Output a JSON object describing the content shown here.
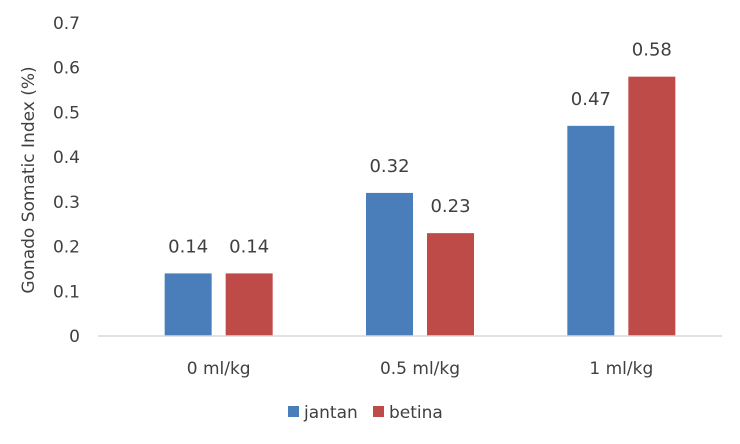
{
  "chart_data": {
    "type": "bar",
    "title": "",
    "xlabel": "",
    "ylabel": "Gonado Somatic Index (%)",
    "categories": [
      "0 ml/kg",
      "0.5 ml/kg",
      "1 ml/kg"
    ],
    "series": [
      {
        "name": "jantan",
        "values": [
          0.14,
          0.32,
          0.47
        ],
        "labels": [
          "0.14",
          "0.32",
          "0.47"
        ],
        "color": "#4a7ebb"
      },
      {
        "name": "betina",
        "values": [
          0.14,
          0.23,
          0.58
        ],
        "labels": [
          "0.14",
          "0.23",
          "0.58"
        ],
        "color": "#be4b48"
      }
    ],
    "ylim": [
      0,
      0.7
    ],
    "yticks": [
      "0",
      "0.1",
      "0.2",
      "0.3",
      "0.4",
      "0.5",
      "0.6",
      "0.7"
    ],
    "grid": false,
    "legend_position": "bottom"
  }
}
